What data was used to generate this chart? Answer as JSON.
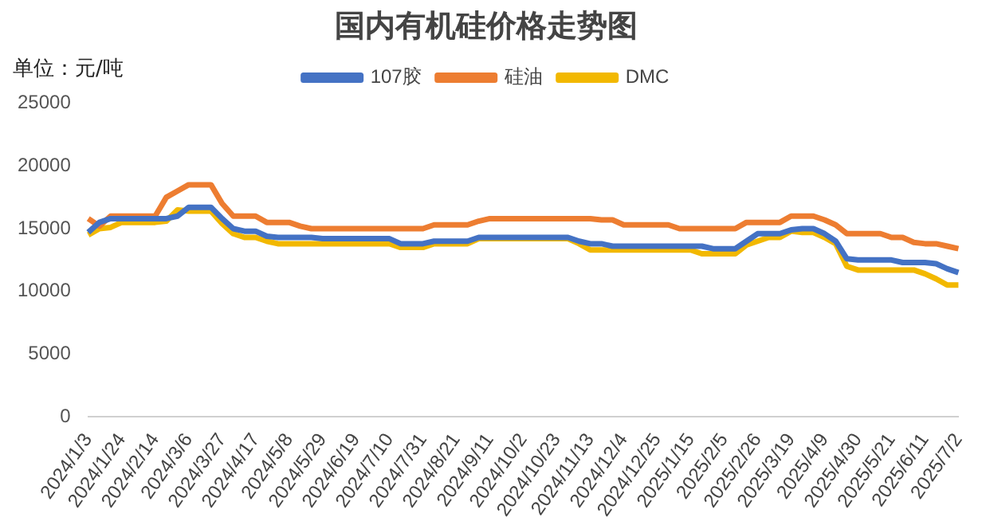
{
  "chart_data": {
    "type": "line",
    "title": "国内有机硅价格走势图",
    "ylabel": "单位：元/吨",
    "categories": [
      "2024/1/3",
      null,
      null,
      "2024/1/24",
      null,
      null,
      "2024/2/14",
      null,
      null,
      "2024/3/6",
      null,
      null,
      "2024/3/27",
      null,
      null,
      "2024/4/17",
      null,
      null,
      "2024/5/8",
      null,
      null,
      "2024/5/29",
      null,
      null,
      "2024/6/19",
      null,
      null,
      "2024/7/10",
      null,
      null,
      "2024/7/31",
      null,
      null,
      "2024/8/21",
      null,
      null,
      "2024/9/11",
      null,
      null,
      "2024/10/2",
      null,
      null,
      "2024/10/23",
      null,
      null,
      "2024/11/13",
      null,
      null,
      "2024/12/4",
      null,
      null,
      "2024/12/25",
      null,
      null,
      "2025/1/15",
      null,
      null,
      "2025/2/5",
      null,
      null,
      "2025/2/26",
      null,
      null,
      "2025/3/19",
      null,
      null,
      "2025/4/9",
      null,
      null,
      "2025/4/30",
      null,
      null,
      "2025/5/21",
      null,
      null,
      "2025/6/11",
      null,
      null,
      "2025/7/2"
    ],
    "series": [
      {
        "name": "107胶",
        "color": "#4472c4",
        "values": [
          14700,
          15500,
          15800,
          15800,
          15800,
          15800,
          15800,
          15800,
          16000,
          16700,
          16700,
          16700,
          15800,
          15000,
          14800,
          14800,
          14400,
          14300,
          14300,
          14300,
          14300,
          14200,
          14200,
          14200,
          14200,
          14200,
          14200,
          14200,
          13800,
          13800,
          13800,
          14000,
          14000,
          14000,
          14000,
          14300,
          14300,
          14300,
          14300,
          14300,
          14300,
          14300,
          14300,
          14300,
          14000,
          13800,
          13800,
          13600,
          13600,
          13600,
          13600,
          13600,
          13600,
          13600,
          13600,
          13600,
          13400,
          13400,
          13400,
          14000,
          14600,
          14600,
          14600,
          14900,
          15000,
          15000,
          14600,
          14000,
          12600,
          12500,
          12500,
          12500,
          12500,
          12300,
          12300,
          12300,
          12200,
          11800,
          11500
        ]
      },
      {
        "name": "硅油",
        "color": "#ed7d31",
        "values": [
          15800,
          15200,
          16000,
          16000,
          16000,
          16000,
          16000,
          17500,
          18000,
          18500,
          18500,
          18500,
          17000,
          16000,
          16000,
          16000,
          15500,
          15500,
          15500,
          15200,
          15000,
          15000,
          15000,
          15000,
          15000,
          15000,
          15000,
          15000,
          15000,
          15000,
          15000,
          15300,
          15300,
          15300,
          15300,
          15600,
          15800,
          15800,
          15800,
          15800,
          15800,
          15800,
          15800,
          15800,
          15800,
          15800,
          15700,
          15700,
          15300,
          15300,
          15300,
          15300,
          15300,
          15000,
          15000,
          15000,
          15000,
          15000,
          15000,
          15500,
          15500,
          15500,
          15500,
          16000,
          16000,
          16000,
          15700,
          15300,
          14600,
          14600,
          14600,
          14600,
          14300,
          14300,
          13900,
          13800,
          13800,
          13600,
          13400
        ]
      },
      {
        "name": "DMC",
        "color": "#f2b800",
        "values": [
          14500,
          15000,
          15100,
          15500,
          15500,
          15500,
          15500,
          15600,
          16500,
          16400,
          16400,
          16400,
          15400,
          14600,
          14300,
          14300,
          14000,
          13800,
          13800,
          13800,
          13800,
          13800,
          13800,
          13800,
          13800,
          13800,
          13800,
          13800,
          13500,
          13500,
          13500,
          13800,
          13800,
          13800,
          13800,
          14200,
          14200,
          14200,
          14200,
          14200,
          14200,
          14200,
          14200,
          14200,
          13800,
          13300,
          13300,
          13300,
          13300,
          13300,
          13300,
          13300,
          13300,
          13300,
          13300,
          13000,
          13000,
          13000,
          13000,
          13700,
          14000,
          14300,
          14300,
          14800,
          14700,
          14700,
          14300,
          13800,
          12000,
          11700,
          11700,
          11700,
          11700,
          11700,
          11700,
          11400,
          11000,
          10500,
          10500
        ]
      }
    ],
    "ylim": [
      0,
      25000
    ],
    "yticks": [
      0,
      5000,
      10000,
      15000,
      20000,
      25000
    ],
    "grid": false,
    "legend": "top",
    "marker": "none",
    "line_style": "solid"
  }
}
